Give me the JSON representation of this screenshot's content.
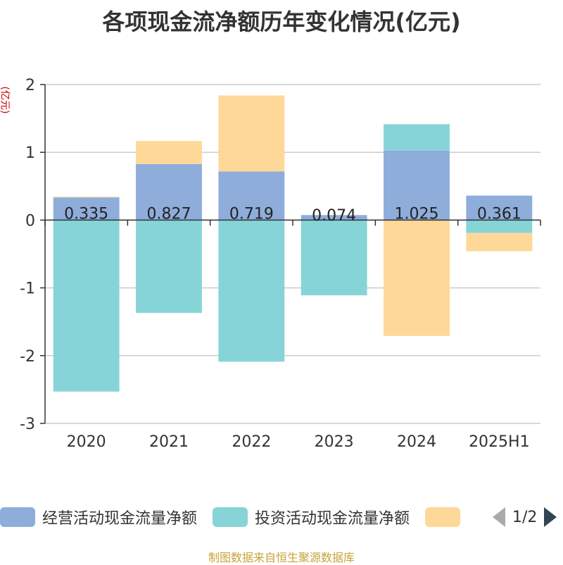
{
  "title": "各项现金流净额历年变化情况(亿元)",
  "unit_label": "(亿元)",
  "source": "制图数据来自恒生聚源数据库",
  "colors": {
    "operating": "#8eaddb",
    "investing": "#86d4d8",
    "financing": "#fed898",
    "axis": "#333333",
    "grid": "#cccccc"
  },
  "legend": {
    "items": [
      {
        "label": "经营活动现金流量净额",
        "color": "#8eaddb"
      },
      {
        "label": "投资活动现金流量净额",
        "color": "#86d4d8"
      },
      {
        "label": "",
        "color": "#fed898"
      }
    ],
    "page": "1/2"
  },
  "chart_data": {
    "type": "bar",
    "stacked": true,
    "categories": [
      "2020",
      "2021",
      "2022",
      "2023",
      "2024",
      "2025H1"
    ],
    "ylim": [
      -3,
      2
    ],
    "yticks": [
      2,
      1,
      0,
      -1,
      -2,
      -3
    ],
    "grid": true,
    "legend_position": "bottom",
    "series": [
      {
        "name": "经营活动现金流量净额",
        "values": [
          0.335,
          0.827,
          0.719,
          0.074,
          1.025,
          0.361
        ],
        "labels": [
          "0.335",
          "0.827",
          "0.719",
          "0.074",
          "1.025",
          "0.361"
        ]
      },
      {
        "name": "投资活动现金流量净额",
        "values": [
          -2.53,
          -1.37,
          -2.09,
          -1.11,
          0.39,
          -0.19
        ]
      },
      {
        "name": "",
        "values": [
          0.01,
          0.34,
          1.12,
          0.0,
          -1.71,
          -0.27
        ]
      }
    ]
  }
}
